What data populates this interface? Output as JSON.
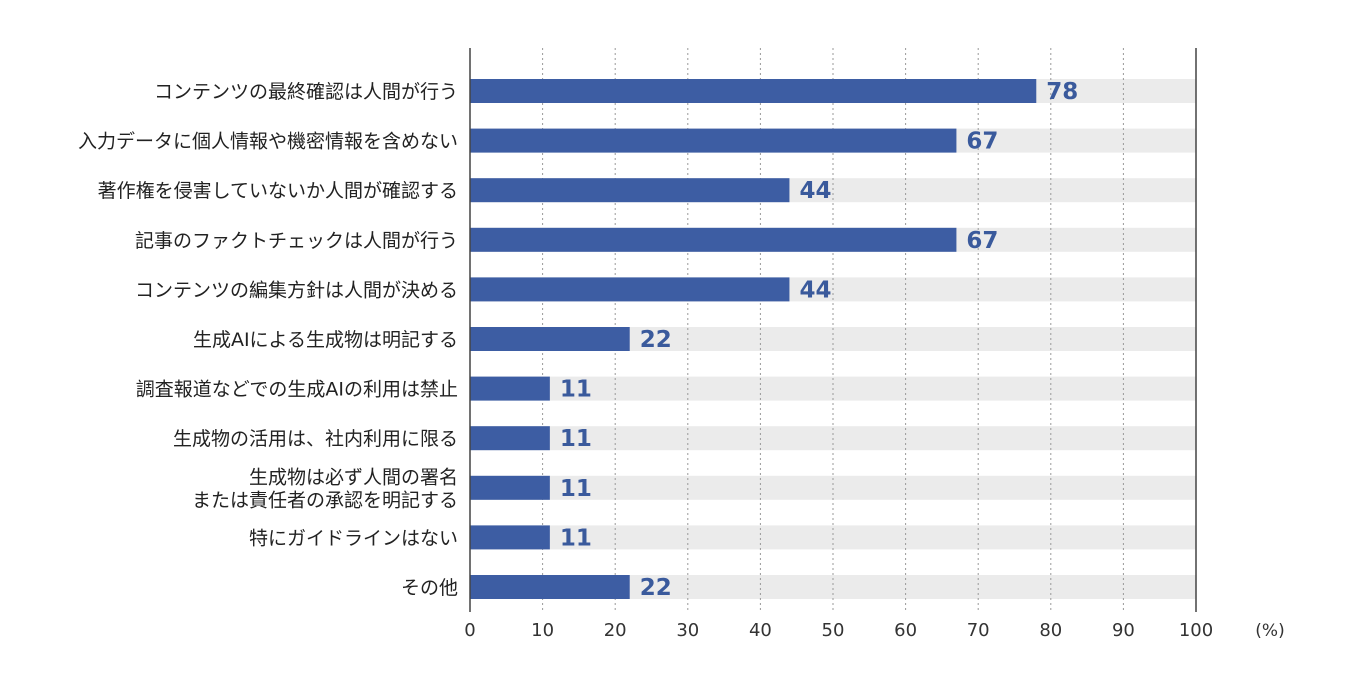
{
  "chart_data": {
    "type": "bar",
    "orientation": "horizontal",
    "title": "",
    "xlabel": "",
    "ylabel": "",
    "unit": "(%)",
    "xlim": [
      0,
      100
    ],
    "ticks": [
      0,
      10,
      20,
      30,
      40,
      50,
      60,
      70,
      80,
      90,
      100
    ],
    "grid": true,
    "categories": [
      [
        "コンテンツの最終確認は人間が行う"
      ],
      [
        "入力データに個人情報や機密情報を含めない"
      ],
      [
        "著作権を侵害していないか人間が確認する"
      ],
      [
        "記事のファクトチェックは人間が行う"
      ],
      [
        "コンテンツの編集方針は人間が決める"
      ],
      [
        "生成AIによる生成物は明記する"
      ],
      [
        "調査報道などでの生成AIの利用は禁止"
      ],
      [
        "生成物の活用は、社内利用に限る"
      ],
      [
        "生成物は必ず人間の署名",
        "または責任者の承認を明記する"
      ],
      [
        "特にガイドラインはない"
      ],
      [
        "その他"
      ]
    ],
    "values": [
      78,
      67,
      44,
      67,
      44,
      22,
      11,
      11,
      11,
      11,
      22
    ]
  },
  "colors": {
    "bar": "#3D5DA3",
    "track": "#EBEBEB",
    "value_text": "#3A5A9C",
    "axis": "#444444",
    "grid": "#999999"
  }
}
